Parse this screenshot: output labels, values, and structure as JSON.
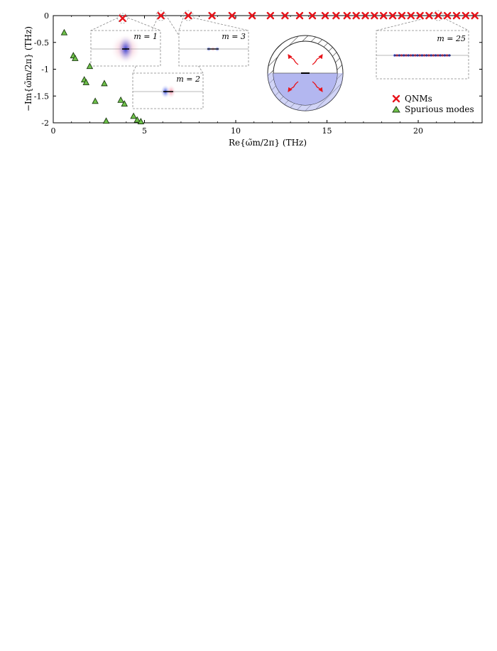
{
  "chart_data": {
    "type": "scatter",
    "xlabel": "Re{ω̃m/2π} (THz)",
    "ylabel": "−Im{ω̃m/2π} (THz)",
    "xlim": [
      0,
      23.5
    ],
    "ylim": [
      -2,
      0
    ],
    "x_ticks": [
      0,
      5,
      10,
      15,
      20
    ],
    "y_ticks": [
      0,
      -0.5,
      -1,
      -1.5,
      -2
    ],
    "x_tick_labels": [
      "0",
      "5",
      "10",
      "15",
      "20"
    ],
    "y_tick_labels": [
      "0",
      "-0.5",
      "-1",
      "-1.5",
      "-2"
    ],
    "grid": false,
    "legend_position": "bottom-right",
    "series": [
      {
        "name": "QNMs",
        "marker": "x",
        "color": "#e8141b",
        "x": [
          3.8,
          5.9,
          7.4,
          8.7,
          9.8,
          10.9,
          11.9,
          12.7,
          13.5,
          14.2,
          14.9,
          15.5,
          16.1,
          16.6,
          17.1,
          17.6,
          18.1,
          18.6,
          19.1,
          19.6,
          20.1,
          20.6,
          21.1,
          21.6,
          22.1,
          22.6,
          23.1
        ],
        "y": [
          -0.05,
          0,
          0,
          0,
          0,
          0,
          0,
          0,
          0,
          0,
          0,
          0,
          0,
          0,
          0,
          0,
          0,
          0,
          0,
          0,
          0,
          0,
          0,
          0,
          0,
          0,
          0
        ]
      },
      {
        "name": "Spurious modes",
        "marker": "triangle",
        "color": "#6fc24a",
        "x": [
          0.6,
          1.1,
          1.2,
          1.7,
          1.8,
          2.0,
          2.3,
          2.8,
          2.9,
          3.7,
          3.9,
          4.4,
          4.6,
          4.8
        ],
        "y": [
          -0.32,
          -0.75,
          -0.8,
          -1.2,
          -1.25,
          -0.95,
          -1.6,
          -1.27,
          -1.97,
          -1.58,
          -1.65,
          -1.88,
          -1.95,
          -1.98
        ]
      }
    ],
    "insets": [
      {
        "label": "m = 1",
        "at_x": 3.8
      },
      {
        "label": "m = 2",
        "at_x": 5.9
      },
      {
        "label": "m = 3",
        "at_x": 7.4
      },
      {
        "label": "m = 25",
        "at_x": 21.1
      }
    ]
  }
}
